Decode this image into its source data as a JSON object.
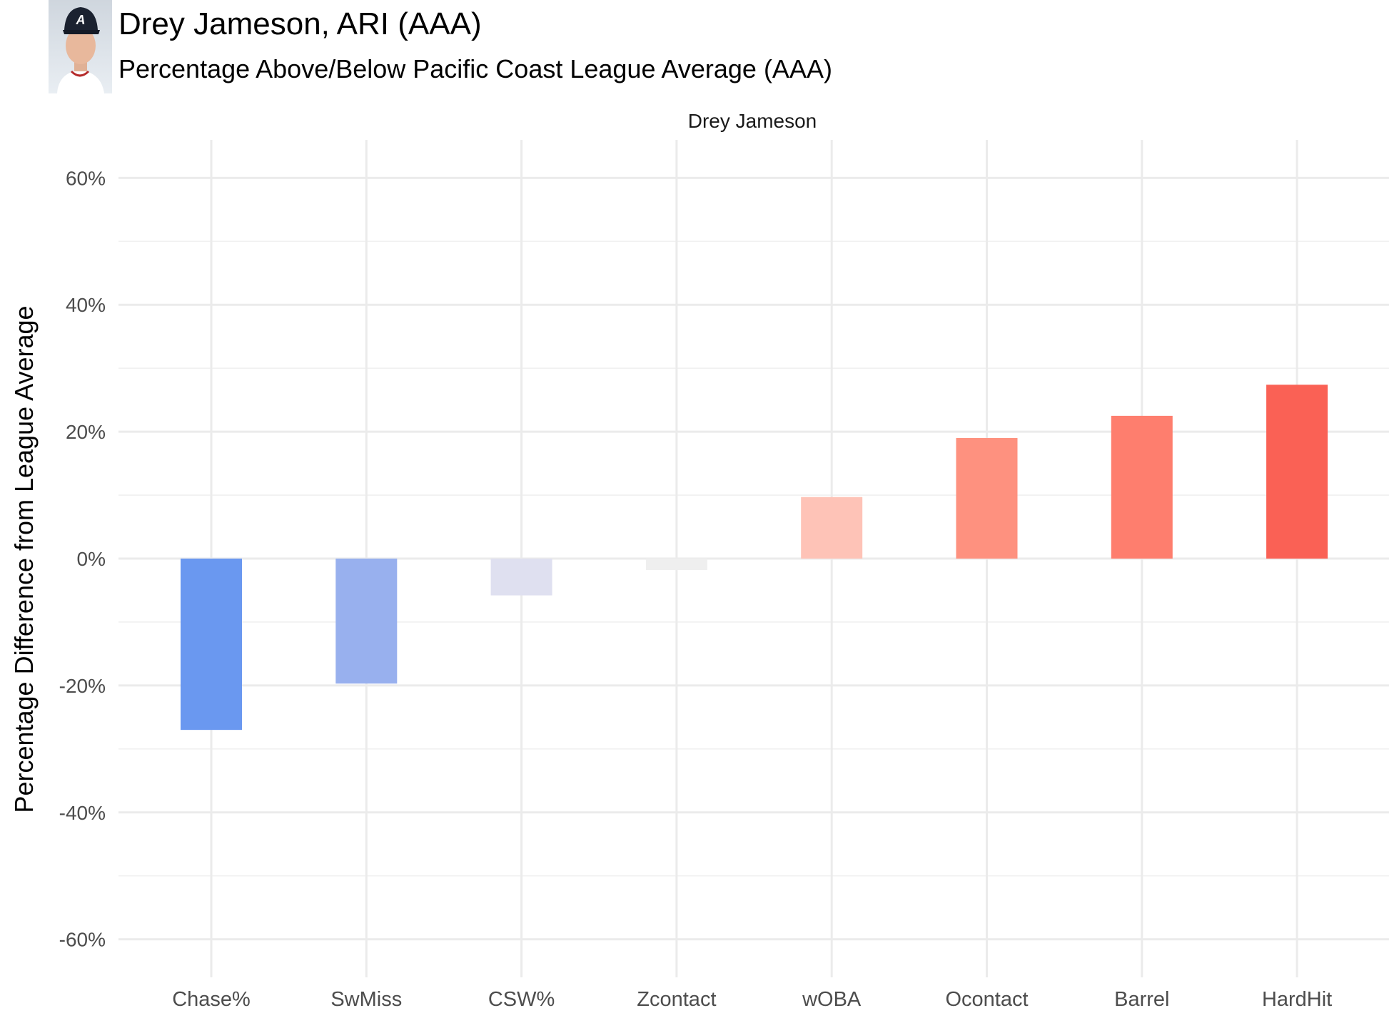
{
  "header": {
    "title": "Drey Jameson, ARI (AAA)",
    "subtitle": "Percentage Above/Below Pacific Coast League Average (AAA)",
    "avatar_icon": "player-headshot-icon"
  },
  "chart_data": {
    "type": "bar",
    "facet_label": "Drey Jameson",
    "ylabel": "Percentage Difference from League Average",
    "xlabel": "",
    "ylim": [
      -0.66,
      0.66
    ],
    "y_ticks": [
      -0.6,
      -0.4,
      -0.2,
      0,
      0.2,
      0.4,
      0.6
    ],
    "y_tick_labels": [
      "-60%",
      "-40%",
      "-20%",
      "0%",
      "20%",
      "40%",
      "60%"
    ],
    "grid": true,
    "categories": [
      "Chase%",
      "SwMiss",
      "CSW%",
      "Zcontact",
      "wOBA",
      "Ocontact",
      "Barrel",
      "HardHit"
    ],
    "values": [
      -0.27,
      -0.197,
      -0.058,
      -0.018,
      0.097,
      0.19,
      0.225,
      0.274
    ],
    "bar_colors": [
      "#6a98f0",
      "#98b0ee",
      "#dfe0f0",
      "#efefef",
      "#fec3b7",
      "#fe917f",
      "#fe7e6e",
      "#fa6155"
    ]
  }
}
